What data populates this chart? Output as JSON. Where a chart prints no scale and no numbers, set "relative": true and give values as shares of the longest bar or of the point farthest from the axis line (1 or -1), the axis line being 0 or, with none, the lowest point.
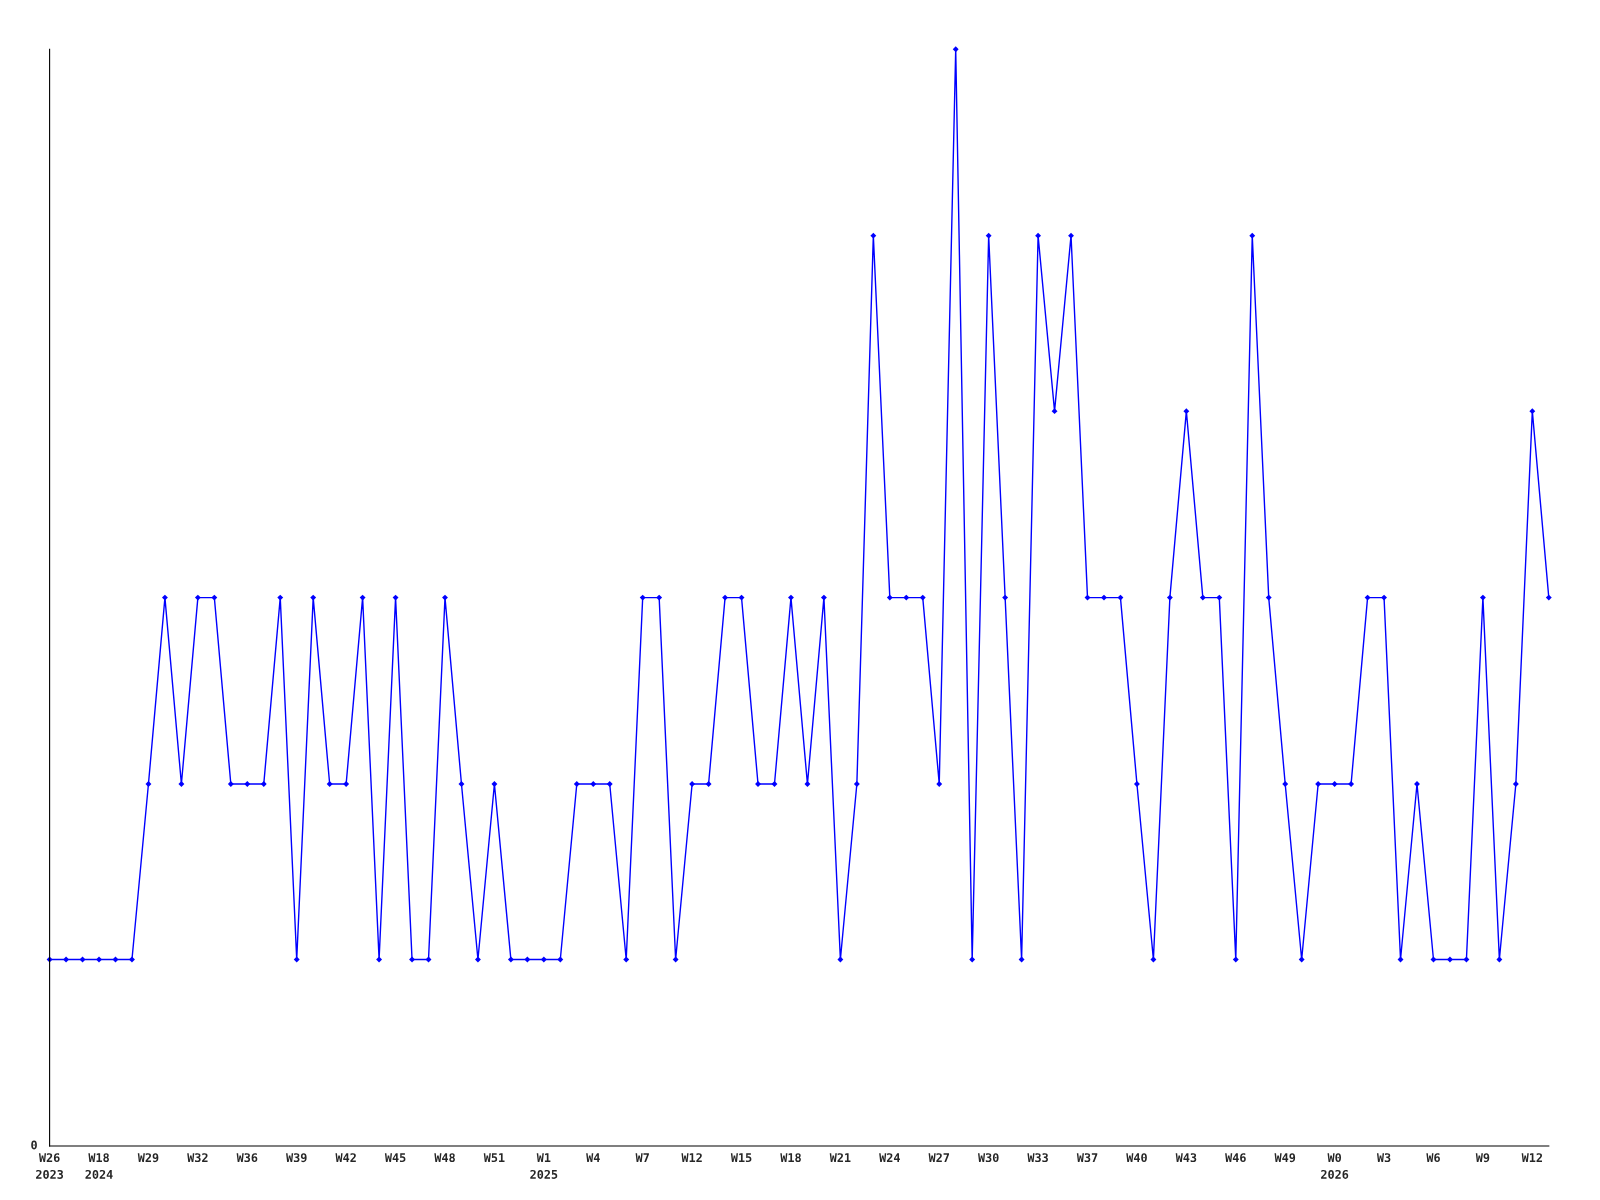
{
  "chart_data": {
    "type": "line",
    "relative": true,
    "marker": "diamond",
    "line_style": "solid",
    "grid": false,
    "legend": false,
    "annotations": [
      "0"
    ],
    "categories": [
      "W26\n2023",
      null,
      null,
      "W18\n2024",
      null,
      null,
      "W29",
      null,
      null,
      "W32",
      null,
      null,
      "W36",
      null,
      null,
      "W39",
      null,
      null,
      "W42",
      null,
      null,
      "W45",
      null,
      null,
      "W48",
      null,
      null,
      "W51",
      null,
      null,
      "W1\n2025",
      null,
      null,
      "W4",
      null,
      null,
      "W7",
      null,
      null,
      "W12",
      null,
      null,
      "W15",
      null,
      null,
      "W18",
      null,
      null,
      "W21",
      null,
      null,
      "W24",
      null,
      null,
      "W27",
      null,
      null,
      "W30",
      null,
      null,
      "W33",
      null,
      null,
      "W37",
      null,
      null,
      "W40",
      null,
      null,
      "W43",
      null,
      null,
      "W46",
      null,
      null,
      "W49",
      null,
      null,
      "W0\n2026",
      null,
      null,
      "W3",
      null,
      null,
      "W6",
      null,
      null,
      "W9",
      null,
      null,
      "W12",
      null
    ],
    "series": [
      {
        "color": "#0000ff",
        "values": [
          0.17,
          0.17,
          0.17,
          0.17,
          0.17,
          0.17,
          0.33,
          0.5,
          0.33,
          0.5,
          0.5,
          0.33,
          0.33,
          0.33,
          0.5,
          0.17,
          0.5,
          0.33,
          0.33,
          0.5,
          0.17,
          0.5,
          0.17,
          0.17,
          0.5,
          0.33,
          0.17,
          0.33,
          0.17,
          0.17,
          0.17,
          0.17,
          0.33,
          0.33,
          0.33,
          0.17,
          0.5,
          0.5,
          0.17,
          0.33,
          0.33,
          0.5,
          0.5,
          0.33,
          0.33,
          0.5,
          0.33,
          0.5,
          0.17,
          0.33,
          0.83,
          0.5,
          0.5,
          0.5,
          0.33,
          1,
          0.17,
          0.83,
          0.5,
          0.17,
          0.83,
          0.67,
          0.83,
          0.5,
          0.5,
          0.5,
          0.33,
          0.17,
          0.5,
          0.67,
          0.5,
          0.5,
          0.17,
          0.83,
          0.5,
          0.33,
          0.17,
          0.33,
          0.33,
          0.33,
          0.5,
          0.5,
          0.17,
          0.33,
          0.17,
          0.17,
          0.17,
          0.5,
          0.17,
          0.33,
          0.67,
          0.5
        ]
      }
    ]
  }
}
